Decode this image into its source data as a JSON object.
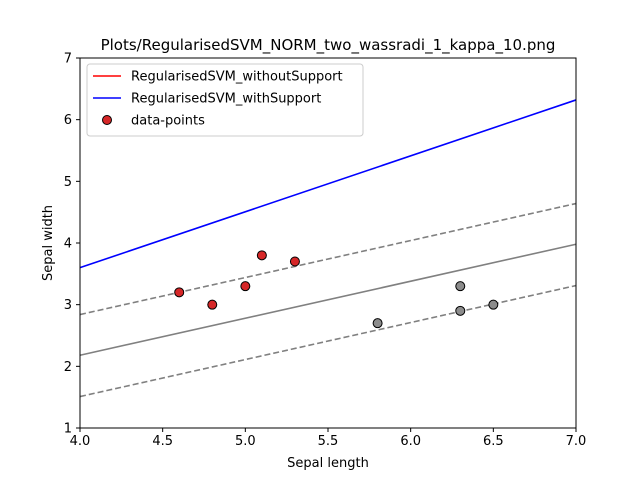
{
  "chart_data": {
    "type": "scatter",
    "title": "Plots/RegularisedSVM_NORM_two_wassradi_1_kappa_10.png",
    "xlabel": "Sepal length",
    "ylabel": "Sepal width",
    "xlim": [
      4.0,
      7.0
    ],
    "ylim": [
      1,
      7
    ],
    "xticks": [
      4.0,
      4.5,
      5.0,
      5.5,
      6.0,
      6.5,
      7.0
    ],
    "xtick_labels": [
      "4.0",
      "4.5",
      "5.0",
      "5.5",
      "6.0",
      "6.5",
      "7.0"
    ],
    "yticks": [
      1,
      2,
      3,
      4,
      5,
      6,
      7
    ],
    "ytick_labels": [
      "1",
      "2",
      "3",
      "4",
      "5",
      "6",
      "7"
    ],
    "grid": false,
    "legend_position": "upper-left",
    "legend": [
      {
        "label": "RegularisedSVM_withoutSupport",
        "kind": "line",
        "color": "#ff0000"
      },
      {
        "label": "RegularisedSVM_withSupport",
        "kind": "line",
        "color": "#0000ff"
      },
      {
        "label": "data-points",
        "kind": "marker",
        "color": "#d62728"
      }
    ],
    "lines": [
      {
        "name": "RegularisedSVM_withSupport",
        "color": "#0000ff",
        "style": "solid",
        "x": [
          4.0,
          7.0
        ],
        "y": [
          3.6,
          6.32
        ]
      },
      {
        "name": "decision-boundary",
        "color": "#808080",
        "style": "solid",
        "x": [
          4.0,
          7.0
        ],
        "y": [
          2.18,
          3.98
        ]
      },
      {
        "name": "margin-upper",
        "color": "#808080",
        "style": "dashed",
        "x": [
          4.0,
          7.0
        ],
        "y": [
          2.84,
          4.64
        ]
      },
      {
        "name": "margin-lower",
        "color": "#808080",
        "style": "dashed",
        "x": [
          4.0,
          7.0
        ],
        "y": [
          1.51,
          3.31
        ]
      }
    ],
    "points": [
      {
        "x": 4.6,
        "y": 3.2,
        "class": "red",
        "color": "#d62728"
      },
      {
        "x": 4.8,
        "y": 3.0,
        "class": "red",
        "color": "#d62728"
      },
      {
        "x": 5.0,
        "y": 3.3,
        "class": "red",
        "color": "#d62728"
      },
      {
        "x": 5.1,
        "y": 3.8,
        "class": "red",
        "color": "#d62728"
      },
      {
        "x": 5.3,
        "y": 3.7,
        "class": "red",
        "color": "#d62728"
      },
      {
        "x": 5.8,
        "y": 2.7,
        "class": "gray",
        "color": "#8c8c8c"
      },
      {
        "x": 6.3,
        "y": 3.3,
        "class": "gray",
        "color": "#8c8c8c"
      },
      {
        "x": 6.3,
        "y": 2.9,
        "class": "gray",
        "color": "#8c8c8c"
      },
      {
        "x": 6.5,
        "y": 3.0,
        "class": "gray",
        "color": "#8c8c8c"
      }
    ]
  }
}
